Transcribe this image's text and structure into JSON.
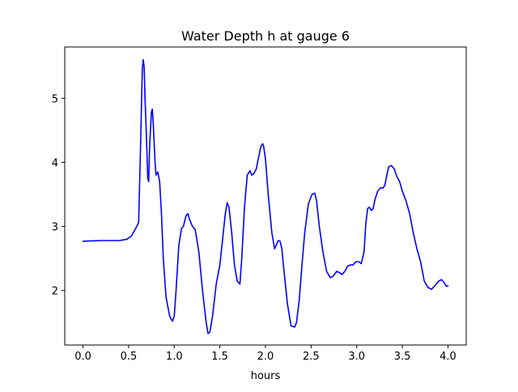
{
  "chart_data": {
    "type": "line",
    "title": "Water Depth h at gauge 6",
    "xlabel": "hours",
    "ylabel": "",
    "xlim": [
      -0.2,
      4.2
    ],
    "ylim": [
      1.15,
      5.8
    ],
    "xticks": [
      0.0,
      0.5,
      1.0,
      1.5,
      2.0,
      2.5,
      3.0,
      3.5,
      4.0
    ],
    "xtick_labels": [
      "0.0",
      "0.5",
      "1.0",
      "1.5",
      "2.0",
      "2.5",
      "3.0",
      "3.5",
      "4.0"
    ],
    "yticks": [
      2,
      3,
      4,
      5
    ],
    "ytick_labels": [
      "2",
      "3",
      "4",
      "5"
    ],
    "grid": false,
    "series": [
      {
        "color": "#0000ff",
        "x": [
          0.0,
          0.1,
          0.2,
          0.3,
          0.4,
          0.48,
          0.53,
          0.57,
          0.6,
          0.61,
          0.63,
          0.65,
          0.66,
          0.67,
          0.68,
          0.7,
          0.71,
          0.72,
          0.73,
          0.75,
          0.76,
          0.77,
          0.79,
          0.8,
          0.82,
          0.84,
          0.86,
          0.88,
          0.91,
          0.95,
          0.98,
          1.0,
          1.02,
          1.05,
          1.08,
          1.1,
          1.13,
          1.15,
          1.17,
          1.2,
          1.23,
          1.27,
          1.31,
          1.35,
          1.37,
          1.39,
          1.42,
          1.46,
          1.5,
          1.53,
          1.56,
          1.58,
          1.6,
          1.63,
          1.66,
          1.69,
          1.72,
          1.74,
          1.77,
          1.8,
          1.83,
          1.85,
          1.87,
          1.9,
          1.92,
          1.95,
          1.97,
          1.98,
          2.0,
          2.03,
          2.07,
          2.1,
          2.14,
          2.16,
          2.18,
          2.2,
          2.24,
          2.28,
          2.32,
          2.34,
          2.37,
          2.4,
          2.43,
          2.47,
          2.51,
          2.54,
          2.56,
          2.59,
          2.63,
          2.67,
          2.71,
          2.74,
          2.78,
          2.81,
          2.84,
          2.87,
          2.9,
          2.93,
          2.96,
          2.99,
          3.02,
          3.05,
          3.08,
          3.1,
          3.12,
          3.14,
          3.16,
          3.18,
          3.2,
          3.23,
          3.26,
          3.29,
          3.31,
          3.33,
          3.35,
          3.38,
          3.41,
          3.44,
          3.47,
          3.5,
          3.54,
          3.58,
          3.62,
          3.66,
          3.7,
          3.74,
          3.78,
          3.82,
          3.86,
          3.9,
          3.93,
          3.96,
          3.98,
          4.0
        ],
        "y": [
          2.77,
          2.775,
          2.78,
          2.78,
          2.78,
          2.8,
          2.85,
          2.95,
          3.03,
          3.07,
          4.2,
          5.45,
          5.6,
          5.5,
          5.0,
          4.2,
          3.75,
          3.7,
          4.25,
          4.78,
          4.83,
          4.6,
          4.0,
          3.8,
          3.85,
          3.7,
          3.2,
          2.5,
          1.9,
          1.6,
          1.52,
          1.6,
          2.0,
          2.7,
          2.97,
          3.0,
          3.17,
          3.2,
          3.1,
          3.0,
          2.95,
          2.6,
          2.0,
          1.5,
          1.33,
          1.35,
          1.6,
          2.1,
          2.4,
          2.8,
          3.2,
          3.37,
          3.3,
          2.9,
          2.4,
          2.15,
          2.1,
          2.5,
          3.3,
          3.8,
          3.87,
          3.8,
          3.82,
          3.9,
          4.05,
          4.25,
          4.29,
          4.25,
          4.05,
          3.5,
          2.9,
          2.65,
          2.78,
          2.77,
          2.65,
          2.35,
          1.8,
          1.45,
          1.43,
          1.5,
          1.85,
          2.4,
          2.9,
          3.35,
          3.5,
          3.52,
          3.4,
          3.0,
          2.6,
          2.3,
          2.2,
          2.22,
          2.3,
          2.28,
          2.25,
          2.3,
          2.38,
          2.4,
          2.4,
          2.45,
          2.45,
          2.42,
          2.6,
          3.05,
          3.28,
          3.3,
          3.25,
          3.28,
          3.42,
          3.55,
          3.6,
          3.6,
          3.65,
          3.8,
          3.93,
          3.95,
          3.9,
          3.78,
          3.7,
          3.55,
          3.4,
          3.2,
          2.9,
          2.65,
          2.45,
          2.15,
          2.05,
          2.02,
          2.08,
          2.15,
          2.17,
          2.12,
          2.07,
          2.07
        ]
      }
    ]
  }
}
